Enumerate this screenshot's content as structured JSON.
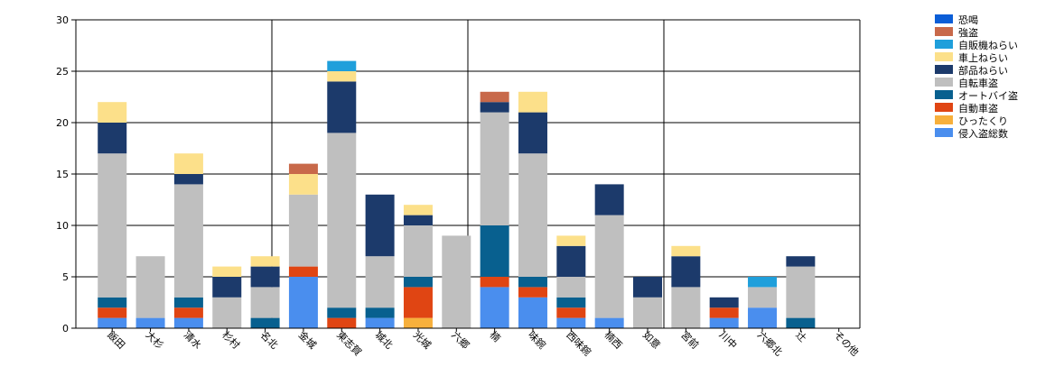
{
  "chart_data": {
    "type": "bar",
    "stacked": true,
    "categories": [
      "飯田",
      "大杉",
      "清水",
      "杉村",
      "名北",
      "金城",
      "東志賀",
      "城北",
      "光城",
      "六郷",
      "楠",
      "味鋺",
      "西味鋺",
      "楠西",
      "如意",
      "宮前",
      "川中",
      "六郷北",
      "辻",
      "その他"
    ],
    "ylim": [
      0,
      30
    ],
    "yticks": [
      0,
      5,
      10,
      15,
      20,
      25,
      30
    ],
    "grid": true,
    "legend_position": "top-right",
    "series": [
      {
        "name": "侵入盗総数",
        "color": "#4A8EEE",
        "values": [
          1,
          1,
          1,
          0,
          0,
          5,
          0,
          1,
          0,
          0,
          4,
          3,
          1,
          1,
          0,
          0,
          1,
          2,
          0,
          0
        ]
      },
      {
        "name": "ひったくり",
        "color": "#F7B03C",
        "values": [
          0,
          0,
          0,
          0,
          0,
          0,
          0,
          0,
          1,
          0,
          0,
          0,
          0,
          0,
          0,
          0,
          0,
          0,
          0,
          0
        ]
      },
      {
        "name": "自動車盗",
        "color": "#E04513",
        "values": [
          1,
          0,
          1,
          0,
          0,
          1,
          1,
          0,
          3,
          0,
          1,
          1,
          1,
          0,
          0,
          0,
          1,
          0,
          0,
          0
        ]
      },
      {
        "name": "オートバイ盗",
        "color": "#08608F",
        "values": [
          1,
          0,
          1,
          0,
          1,
          0,
          1,
          1,
          1,
          0,
          5,
          1,
          1,
          0,
          0,
          0,
          0,
          0,
          1,
          0
        ]
      },
      {
        "name": "自転車盗",
        "color": "#BFBFBF",
        "values": [
          14,
          6,
          11,
          3,
          3,
          7,
          17,
          5,
          5,
          9,
          11,
          12,
          2,
          10,
          3,
          4,
          0,
          2,
          5,
          0
        ]
      },
      {
        "name": "部品ねらい",
        "color": "#1C3A6B",
        "values": [
          3,
          0,
          1,
          2,
          2,
          0,
          5,
          6,
          1,
          0,
          1,
          4,
          3,
          3,
          2,
          3,
          1,
          0,
          1,
          0
        ]
      },
      {
        "name": "車上ねらい",
        "color": "#FCE08A",
        "values": [
          2,
          0,
          2,
          1,
          1,
          2,
          1,
          0,
          1,
          0,
          0,
          2,
          1,
          0,
          0,
          1,
          0,
          0,
          0,
          0
        ]
      },
      {
        "name": "自販機ねらい",
        "color": "#1F9FDB",
        "values": [
          0,
          0,
          0,
          0,
          0,
          0,
          1,
          0,
          0,
          0,
          0,
          0,
          0,
          0,
          0,
          0,
          0,
          1,
          0,
          0
        ]
      },
      {
        "name": "強盗",
        "color": "#C8694A",
        "values": [
          0,
          0,
          0,
          0,
          0,
          1,
          0,
          0,
          0,
          0,
          1,
          0,
          0,
          0,
          0,
          0,
          0,
          0,
          0,
          0
        ]
      },
      {
        "name": "恐喝",
        "color": "#0B5ED7",
        "values": [
          0,
          0,
          0,
          0,
          0,
          0,
          0,
          0,
          0,
          0,
          0,
          0,
          0,
          0,
          0,
          0,
          0,
          0,
          0,
          0
        ]
      }
    ]
  }
}
